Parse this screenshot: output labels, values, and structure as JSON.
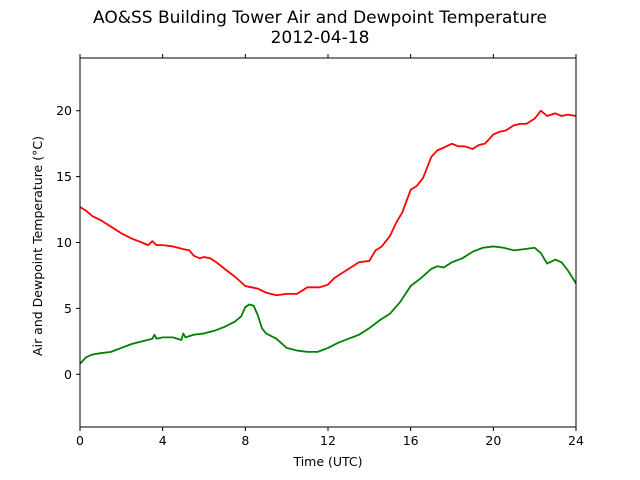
{
  "chart_data": {
    "type": "line",
    "title": "AO&SS Building Tower Air and Dewpoint Temperature",
    "subtitle": "2012-04-18",
    "xlabel": "Time (UTC)",
    "ylabel": "Air and Dewpoint Temperature (°C)",
    "xlim": [
      0,
      24
    ],
    "ylim": [
      -4,
      24
    ],
    "xticks": [
      "0",
      "4",
      "8",
      "12",
      "16",
      "20",
      "24"
    ],
    "yticks": [
      "0",
      "5",
      "10",
      "15",
      "20"
    ],
    "grid": false,
    "series": [
      {
        "color": "#ff0000",
        "x": [
          0,
          0.3,
          0.6,
          1,
          1.5,
          2,
          2.5,
          3,
          3.3,
          3.5,
          3.7,
          4,
          4.5,
          5,
          5.3,
          5.5,
          5.8,
          6,
          6.3,
          6.6,
          7,
          7.5,
          8,
          8.3,
          8.6,
          9,
          9.5,
          10,
          10.5,
          11,
          11.3,
          11.6,
          12,
          12.3,
          12.6,
          13,
          13.5,
          14,
          14.3,
          14.6,
          15,
          15.3,
          15.6,
          16,
          16.3,
          16.6,
          17,
          17.3,
          17.6,
          18,
          18.3,
          18.6,
          19,
          19.3,
          19.6,
          20,
          20.3,
          20.6,
          21,
          21.3,
          21.6,
          22,
          22.3,
          22.6,
          23,
          23.3,
          23.6,
          24
        ],
        "y": [
          12.7,
          12.4,
          12,
          11.7,
          11.2,
          10.7,
          10.3,
          10,
          9.8,
          10.1,
          9.8,
          9.8,
          9.7,
          9.5,
          9.4,
          9,
          8.8,
          8.9,
          8.8,
          8.5,
          8.0,
          7.4,
          6.7,
          6.6,
          6.5,
          6.2,
          6.0,
          6.1,
          6.1,
          6.6,
          6.6,
          6.6,
          6.8,
          7.3,
          7.6,
          8.0,
          8.5,
          8.6,
          9.4,
          9.7,
          10.5,
          11.5,
          12.3,
          14.0,
          14.3,
          14.9,
          16.5,
          17.0,
          17.2,
          17.5,
          17.3,
          17.3,
          17.1,
          17.4,
          17.5,
          18.2,
          18.4,
          18.5,
          18.9,
          19.0,
          19.0,
          19.4,
          20.0,
          19.6,
          19.8,
          19.6,
          19.7,
          19.6
        ]
      },
      {
        "color": "#008000",
        "x": [
          0,
          0.3,
          0.6,
          1,
          1.5,
          2,
          2.5,
          3,
          3.5,
          3.6,
          3.7,
          4,
          4.5,
          4.9,
          5,
          5.1,
          5.5,
          6,
          6.5,
          7,
          7.5,
          7.8,
          8,
          8.2,
          8.4,
          8.6,
          8.8,
          9,
          9.5,
          10,
          10.5,
          11,
          11.5,
          12,
          12.5,
          13,
          13.5,
          14,
          14.5,
          15,
          15.5,
          16,
          16.5,
          17,
          17.3,
          17.6,
          18,
          18.5,
          19,
          19.5,
          20,
          20.5,
          21,
          21.5,
          22,
          22.3,
          22.6,
          23,
          23.3,
          23.6,
          24
        ],
        "y": [
          0.8,
          1.3,
          1.5,
          1.6,
          1.7,
          2.0,
          2.3,
          2.5,
          2.7,
          3.0,
          2.7,
          2.8,
          2.8,
          2.6,
          3.1,
          2.8,
          3.0,
          3.1,
          3.3,
          3.6,
          4.0,
          4.4,
          5.1,
          5.3,
          5.2,
          4.5,
          3.5,
          3.1,
          2.7,
          2.0,
          1.8,
          1.7,
          1.7,
          2.0,
          2.4,
          2.7,
          3.0,
          3.5,
          4.1,
          4.6,
          5.5,
          6.7,
          7.3,
          8.0,
          8.2,
          8.1,
          8.5,
          8.8,
          9.3,
          9.6,
          9.7,
          9.6,
          9.4,
          9.5,
          9.6,
          9.2,
          8.4,
          8.7,
          8.5,
          7.9,
          6.9
        ]
      }
    ]
  }
}
